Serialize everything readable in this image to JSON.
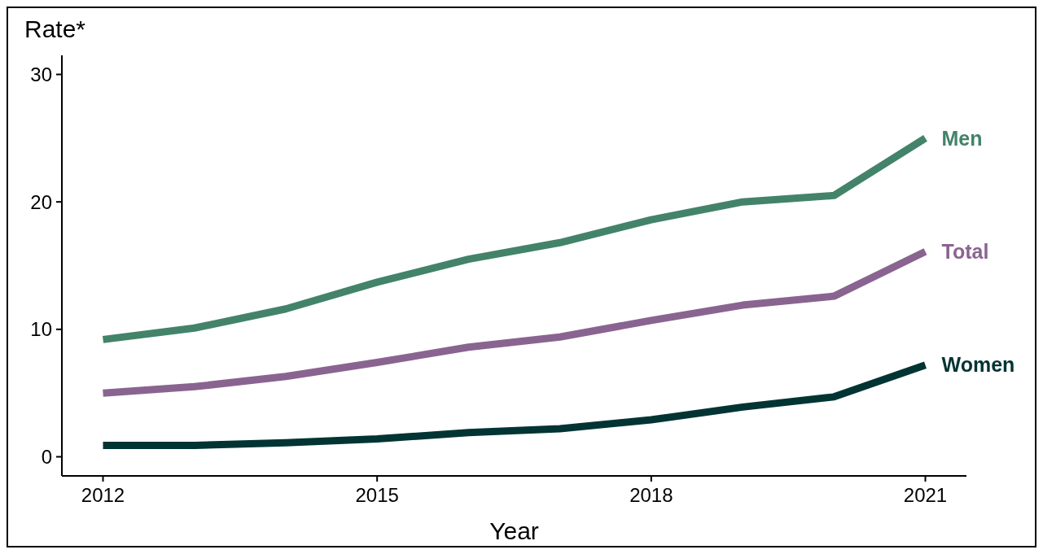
{
  "chart_data": {
    "type": "line",
    "ylabel": "Rate*",
    "xlabel": "Year",
    "x": [
      2012,
      2013,
      2014,
      2015,
      2016,
      2017,
      2018,
      2019,
      2020,
      2021
    ],
    "series": [
      {
        "name": "Men",
        "color": "#43836a",
        "values": [
          9.2,
          10.1,
          11.6,
          13.7,
          15.5,
          16.8,
          18.6,
          20.0,
          20.5,
          25.0
        ]
      },
      {
        "name": "Total",
        "color": "#8a6490",
        "values": [
          5.0,
          5.5,
          6.3,
          7.4,
          8.6,
          9.4,
          10.7,
          11.9,
          12.6,
          16.1
        ]
      },
      {
        "name": "Women",
        "color": "#023433",
        "values": [
          0.9,
          0.9,
          1.1,
          1.4,
          1.9,
          2.2,
          2.9,
          3.9,
          4.7,
          7.2
        ]
      }
    ],
    "xlim": [
      2011.55,
      2021.45
    ],
    "ylim": [
      -1.5,
      31.5
    ],
    "xticks": [
      2012,
      2015,
      2018,
      2021
    ],
    "yticks": [
      0,
      10,
      20,
      30
    ],
    "grid": false,
    "marker": "none",
    "line_style": "solid"
  }
}
